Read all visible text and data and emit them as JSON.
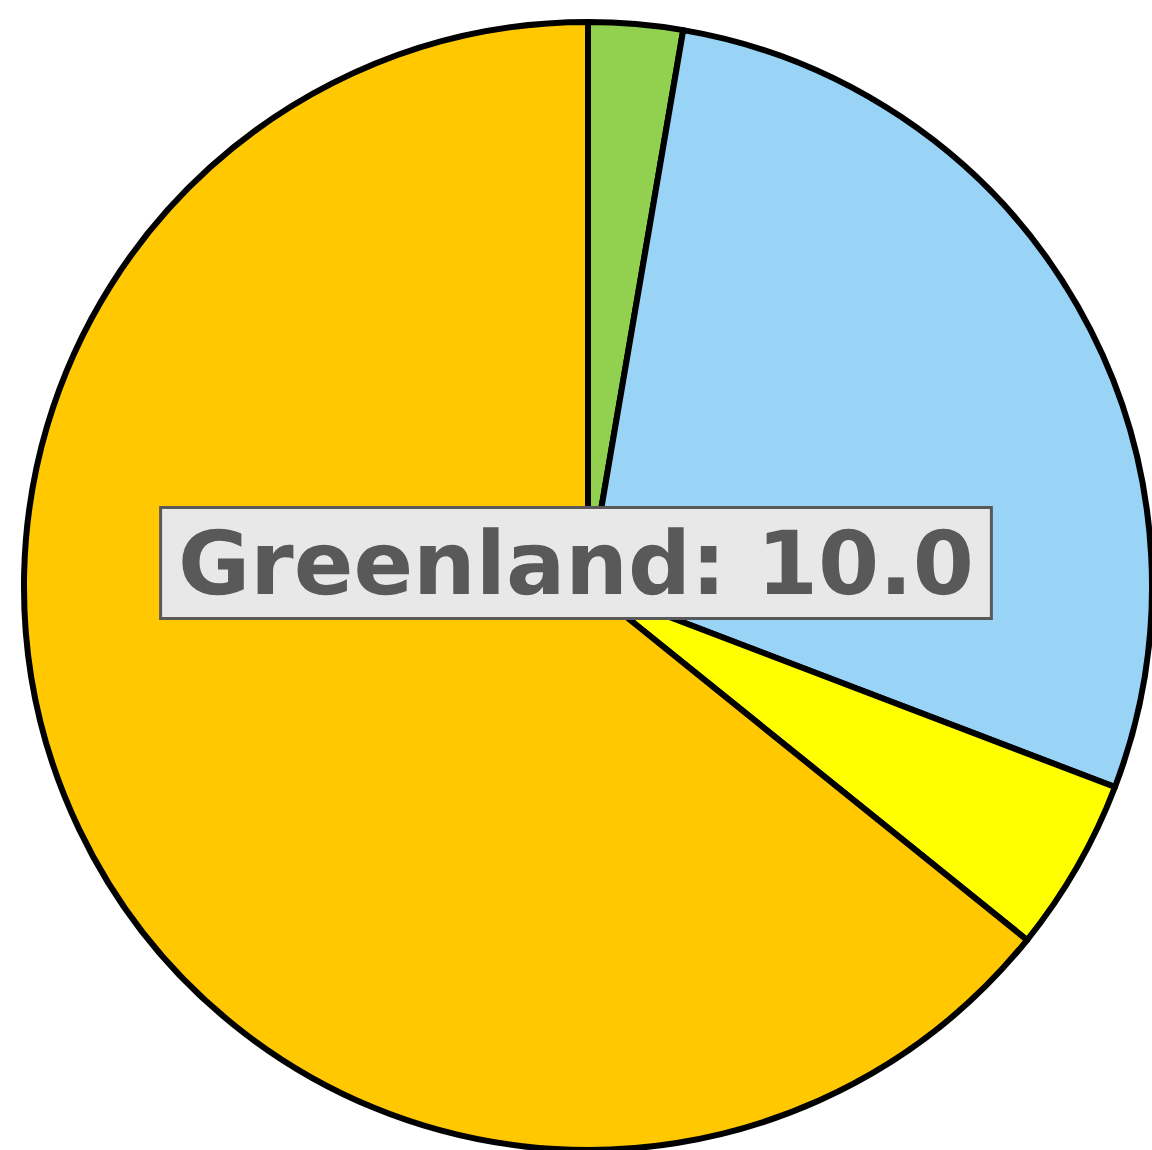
{
  "chart_data": {
    "type": "pie",
    "categories": [
      null,
      null,
      null,
      null
    ],
    "values": [
      2.7,
      28.1,
      5.0,
      64.2
    ],
    "colors": [
      "#92d050",
      "#99d3f5",
      "#ffff00",
      "#ffc800"
    ],
    "annotations": [
      "Greenland: 10.0"
    ]
  }
}
